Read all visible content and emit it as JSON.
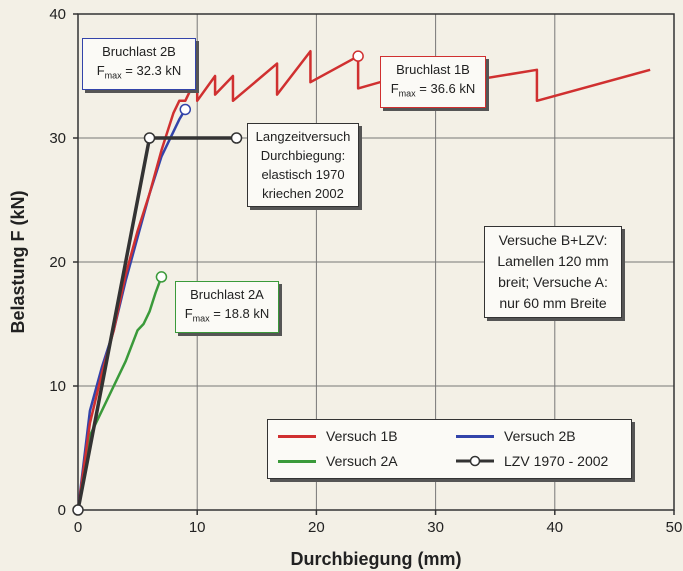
{
  "chart_data": {
    "type": "line",
    "xlabel": "Durchbiegung (mm)",
    "ylabel": "Belastung F (kN)",
    "xlim": [
      0,
      50
    ],
    "ylim": [
      0,
      40
    ],
    "xticks": [
      0,
      10,
      20,
      30,
      40,
      50
    ],
    "yticks": [
      0,
      10,
      20,
      30,
      40
    ],
    "grid": true,
    "legend_position": "bottom-right",
    "series": [
      {
        "name": "Versuch 1B",
        "color": "#d03030",
        "x": [
          0,
          1,
          2,
          3,
          4,
          5,
          6,
          7,
          8,
          8.5,
          9,
          9.5,
          10,
          10,
          11.5,
          11.5,
          13,
          13,
          16.7,
          16.7,
          19.5,
          19.5,
          23.5,
          23.5,
          29,
          29,
          38.5,
          38.5,
          48
        ],
        "y": [
          0,
          7,
          11,
          14.5,
          19,
          22.5,
          25.5,
          29,
          32,
          33,
          33,
          34,
          35,
          33,
          35,
          33.5,
          35,
          33,
          36,
          33.5,
          37,
          34.5,
          36.6,
          34,
          35.5,
          34,
          35.5,
          33,
          35.5
        ]
      },
      {
        "name": "Versuch 2B",
        "color": "#3344aa",
        "x": [
          0,
          1,
          2,
          3,
          4,
          5,
          6,
          7,
          7.5,
          8,
          8.5,
          9
        ],
        "y": [
          0,
          8,
          11.5,
          14.5,
          18.5,
          22,
          25.5,
          28.5,
          29.5,
          30.5,
          31.5,
          32.3
        ]
      },
      {
        "name": "Versuch 2A",
        "color": "#3a9a3a",
        "x": [
          0,
          1,
          2,
          3,
          4,
          5,
          5.5,
          6,
          6.5,
          7
        ],
        "y": [
          0,
          6,
          8,
          10,
          12,
          14.5,
          15,
          16,
          17.5,
          18.8
        ]
      },
      {
        "name": "LZV 1970 - 2002",
        "color": "#333333",
        "x": [
          0,
          6,
          13.3
        ],
        "y": [
          0,
          30,
          30
        ],
        "markers": true
      }
    ],
    "markers": [
      {
        "series": 0,
        "x": 23.5,
        "y": 36.6
      },
      {
        "series": 1,
        "x": 9,
        "y": 32.3
      },
      {
        "series": 2,
        "x": 7,
        "y": 18.8
      }
    ],
    "annotations": [
      {
        "id": "bruchlast-2b",
        "lines": [
          "Bruchlast 2B",
          "F_max = 32.3 kN"
        ],
        "color": "#3344aa"
      },
      {
        "id": "bruchlast-1b",
        "lines": [
          "Bruchlast 1B",
          "F_max = 36.6 kN"
        ],
        "color": "#d03030"
      },
      {
        "id": "langzeit",
        "lines": [
          "Langzeitversuch",
          "Durchbiegung:",
          "elastisch 1970",
          "kriechen 2002"
        ],
        "color": "#333333"
      },
      {
        "id": "versuche",
        "lines": [
          "Versuche B+LZV:",
          "Lamellen 120 mm",
          "breit; Versuche A:",
          "nur 60 mm Breite"
        ],
        "color": "#333333"
      },
      {
        "id": "bruchlast-2a",
        "lines": [
          "Bruchlast 2A",
          "F_max = 18.8 kN"
        ],
        "color": "#3a9a3a"
      }
    ]
  },
  "annot": {
    "b2_title": "Bruchlast 2B",
    "b2_f": "F",
    "b2_sub": "max",
    "b2_val": " = 32.3 kN",
    "b1_title": "Bruchlast 1B",
    "b1_f": "F",
    "b1_sub": "max",
    "b1_val": " = 36.6 kN",
    "a2_title": "Bruchlast 2A",
    "a2_f": "F",
    "a2_sub": "max",
    "a2_val": " = 18.8 kN",
    "lzv_1": "Langzeitversuch",
    "lzv_2": "Durchbiegung:",
    "lzv_3": "elastisch 1970",
    "lzv_4": "kriechen 2002",
    "vb_1": "Versuche B+LZV:",
    "vb_2": "Lamellen 120 mm",
    "vb_3": "breit; Versuche A:",
    "vb_4": "nur 60 mm Breite"
  },
  "legend": {
    "v1b": "Versuch 1B",
    "v2b": "Versuch 2B",
    "v2a": "Versuch 2A",
    "lzv": "LZV 1970 - 2002"
  }
}
